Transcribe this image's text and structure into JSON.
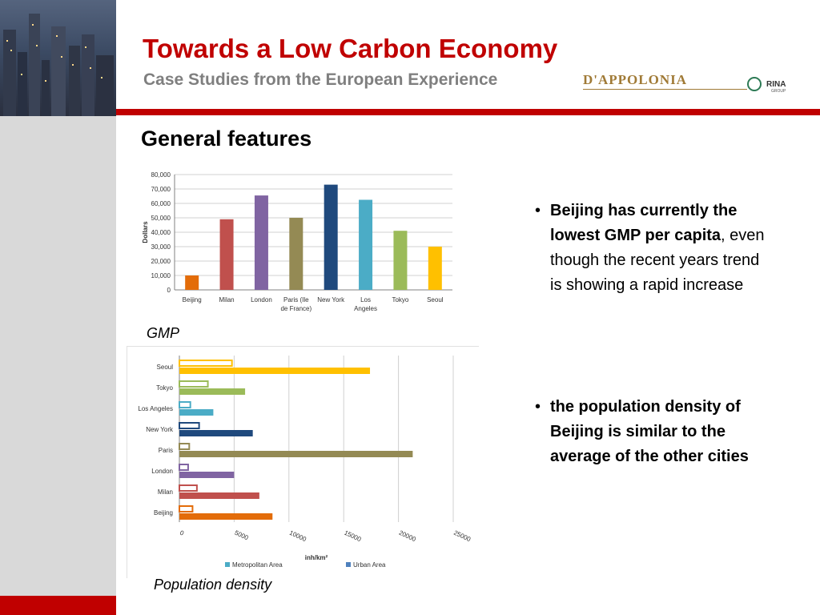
{
  "header": {
    "title": "Towards a Low Carbon Economy",
    "subtitle": "Case Studies from the European Experience",
    "logo": {
      "brand": "D'APPOLONIA",
      "partner": "RINA",
      "partner_sub": "GROUP"
    }
  },
  "section": {
    "heading": "General features"
  },
  "captions": {
    "gmp": "GMP",
    "density": "Population density"
  },
  "bullets": [
    {
      "bold": "Beijing has currently the lowest GMP per capita",
      "rest": ", even though the recent years trend is showing a rapid increase"
    },
    {
      "bold": "the population density of Beijing is similar to the average of the other cities",
      "rest": ""
    }
  ],
  "colors": {
    "accent_red": "#c00000",
    "subtitle_gray": "#7f7f7f",
    "logo_gold": "#a07a36"
  },
  "chart_data": [
    {
      "type": "bar",
      "categories": [
        "Beijing",
        "Milan",
        "London",
        "Paris (Ile de France)",
        "New York",
        "Los Angeles",
        "Tokyo",
        "Seoul"
      ],
      "category_lines": [
        [
          "Beijing"
        ],
        [
          "Milan"
        ],
        [
          "London"
        ],
        [
          "Paris (Ile",
          "de France)"
        ],
        [
          "New York"
        ],
        [
          "Los",
          "Angeles"
        ],
        [
          "Tokyo"
        ],
        [
          "Seoul"
        ]
      ],
      "values": [
        10000,
        49000,
        65500,
        50000,
        73000,
        62500,
        41000,
        30000
      ],
      "colors": [
        "#e36c09",
        "#c0504d",
        "#8064a2",
        "#948a54",
        "#1f497d",
        "#4bacc6",
        "#9bbb59",
        "#ffc000"
      ],
      "ylabel": "Dollars",
      "ylim": [
        0,
        80000
      ],
      "yticks": [
        0,
        10000,
        20000,
        30000,
        40000,
        50000,
        60000,
        70000,
        80000
      ],
      "ytick_labels": [
        "0",
        "10,000",
        "20,000",
        "30,000",
        "40,000",
        "50,000",
        "60,000",
        "70,000",
        "80,000"
      ],
      "grid": true
    },
    {
      "type": "bar",
      "orientation": "horizontal",
      "categories": [
        "Seoul",
        "Tokyo",
        "Los Angeles",
        "New York",
        "Paris",
        "London",
        "Milan",
        "Beijing"
      ],
      "series": [
        {
          "name": "Metropolitan Area",
          "values": [
            4800,
            2600,
            1000,
            1800,
            900,
            800,
            1600,
            1200
          ],
          "style": "outline"
        },
        {
          "name": "Urban Area",
          "values": [
            17400,
            6000,
            3100,
            6700,
            21300,
            5000,
            7300,
            8500
          ],
          "style": "filled"
        }
      ],
      "colors": [
        "#ffc000",
        "#9bbb59",
        "#4bacc6",
        "#1f497d",
        "#948a54",
        "#8064a2",
        "#c0504d",
        "#e36c09"
      ],
      "xlabel": "inh/km²",
      "xlim": [
        0,
        25000
      ],
      "xticks": [
        0,
        5000,
        10000,
        15000,
        20000,
        25000
      ],
      "legend": "bottom",
      "legend_swatch_colors": [
        "#4bacc6",
        "#4f81bd"
      ],
      "grid": true
    }
  ]
}
